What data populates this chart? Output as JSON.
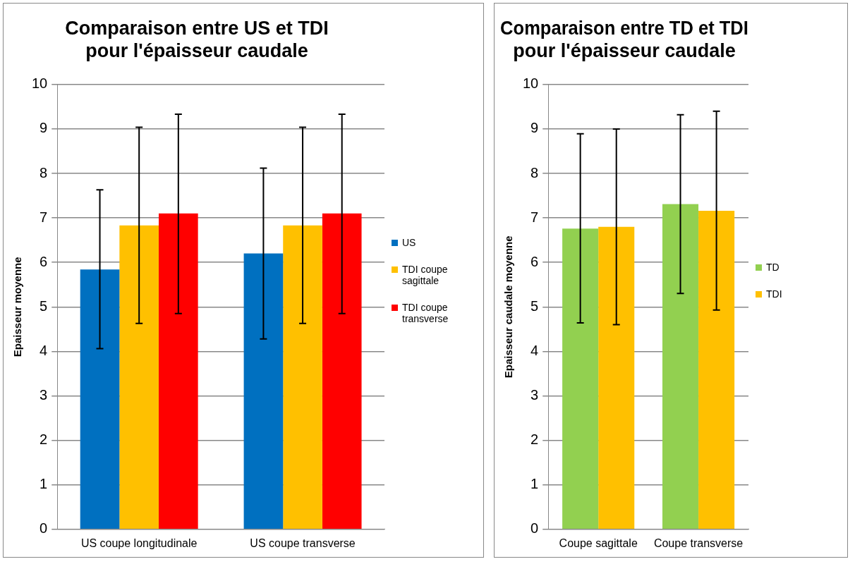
{
  "chart_data": [
    {
      "type": "bar",
      "title": "Comparaison entre US et TDI pour l'épaisseur caudale",
      "ylabel": "Epaisseur moyenne",
      "categories": [
        "US coupe longitudinale",
        "US coupe transverse"
      ],
      "ylim": [
        0,
        10
      ],
      "yticks": [
        0,
        1,
        2,
        3,
        4,
        5,
        6,
        7,
        8,
        9,
        10
      ],
      "grid": "y",
      "legend": "right",
      "series": [
        {
          "name": "US",
          "color": "#0070c0",
          "values": [
            5.84,
            6.2
          ],
          "errors": [
            [
              4.06,
              7.63
            ],
            [
              4.28,
              8.12
            ]
          ]
        },
        {
          "name": "TDI coupe sagittale",
          "color": "#ffc000",
          "values": [
            6.83,
            6.83
          ],
          "errors": [
            [
              4.63,
              9.04
            ],
            [
              4.63,
              9.04
            ]
          ]
        },
        {
          "name": "TDI coupe transverse",
          "color": "#ff0000",
          "values": [
            7.1,
            7.1
          ],
          "errors": [
            [
              4.85,
              9.33
            ],
            [
              4.85,
              9.33
            ]
          ]
        }
      ]
    },
    {
      "type": "bar",
      "title": "Comparaison entre TD et TDI pour l'épaisseur caudale",
      "ylabel": "Epaisseur caudale moyenne",
      "categories": [
        "Coupe sagittale",
        "Coupe transverse"
      ],
      "ylim": [
        0,
        10
      ],
      "yticks": [
        0,
        1,
        2,
        3,
        4,
        5,
        6,
        7,
        8,
        9,
        10
      ],
      "grid": "y",
      "legend": "right",
      "series": [
        {
          "name": "TD",
          "color": "#92d050",
          "values": [
            6.76,
            7.31
          ],
          "errors": [
            [
              4.64,
              8.89
            ],
            [
              5.3,
              9.32
            ]
          ]
        },
        {
          "name": "TDI",
          "color": "#ffc000",
          "values": [
            6.8,
            7.16
          ],
          "errors": [
            [
              4.6,
              9.0
            ],
            [
              4.93,
              9.4
            ]
          ]
        }
      ]
    }
  ]
}
